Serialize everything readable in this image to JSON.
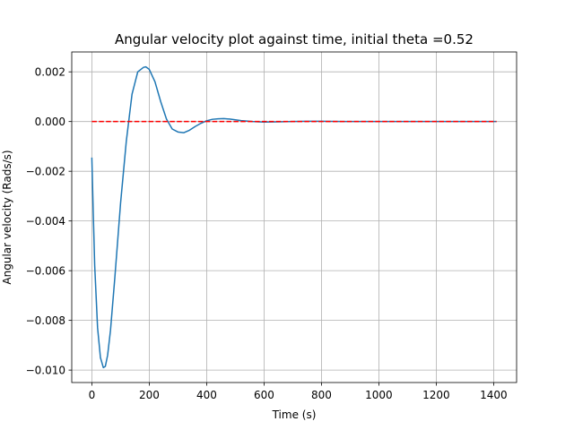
{
  "chart_data": {
    "type": "line",
    "title": "Angular velocity plot against time, initial theta =0.52",
    "xlabel": "Time (s)",
    "ylabel": "Angular velocity (Rads/s)",
    "xlim": [
      -70,
      1480
    ],
    "ylim": [
      -0.0105,
      0.0028
    ],
    "grid": true,
    "legend": "none",
    "x_ticks": [
      {
        "value": 0,
        "label": "0"
      },
      {
        "value": 200,
        "label": "200"
      },
      {
        "value": 400,
        "label": "400"
      },
      {
        "value": 600,
        "label": "600"
      },
      {
        "value": 800,
        "label": "800"
      },
      {
        "value": 1000,
        "label": "1000"
      },
      {
        "value": 1200,
        "label": "1200"
      },
      {
        "value": 1400,
        "label": "1400"
      }
    ],
    "y_ticks": [
      {
        "value": 0.002,
        "label": "0.002"
      },
      {
        "value": 0.0,
        "label": "0.000"
      },
      {
        "value": -0.002,
        "label": "−0.002"
      },
      {
        "value": -0.004,
        "label": "−0.004"
      },
      {
        "value": -0.006,
        "label": "−0.006"
      },
      {
        "value": -0.008,
        "label": "−0.008"
      },
      {
        "value": -0.01,
        "label": "−0.010"
      }
    ],
    "series": [
      {
        "color": "#1f77b4",
        "style": "solid",
        "x": [
          0,
          5,
          10,
          20,
          30,
          40,
          47,
          55,
          65,
          80,
          100,
          120,
          140,
          160,
          180,
          188,
          200,
          220,
          240,
          260,
          280,
          300,
          320,
          340,
          360,
          380,
          400,
          420,
          440,
          460,
          480,
          500,
          520,
          540,
          560,
          580,
          600,
          650,
          700,
          750,
          800,
          900,
          1000,
          1100,
          1200,
          1300,
          1410
        ],
        "y": [
          -0.00145,
          -0.0037,
          -0.0058,
          -0.0083,
          -0.0095,
          -0.0099,
          -0.00985,
          -0.0094,
          -0.0084,
          -0.0063,
          -0.0033,
          -0.0008,
          0.0011,
          0.002,
          0.00218,
          0.0022,
          0.0021,
          0.0016,
          0.0008,
          0.0001,
          -0.0003,
          -0.00042,
          -0.00045,
          -0.00035,
          -0.0002,
          -7e-05,
          3e-05,
          9e-05,
          0.00011,
          0.00012,
          0.0001,
          7e-05,
          4e-05,
          2e-05,
          0.0,
          -1e-05,
          -2e-05,
          -1e-05,
          0.0,
          1e-05,
          1e-05,
          0.0,
          0.0,
          0.0,
          0.0,
          0.0,
          0.0
        ]
      },
      {
        "color": "#ff0000",
        "style": "dashed",
        "x": [
          0,
          1410
        ],
        "y": [
          0,
          0
        ]
      }
    ]
  }
}
